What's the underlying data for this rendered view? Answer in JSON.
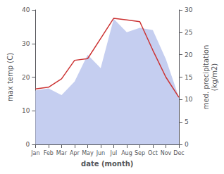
{
  "chart_data": {
    "type": "line",
    "categories": [
      "Jan",
      "Feb",
      "Mar",
      "Apr",
      "May",
      "Jun",
      "Jul",
      "Aug",
      "Sep",
      "Oct",
      "Nov",
      "Dec"
    ],
    "xlabel": "date (month)",
    "ylabel": "max temp (C)",
    "y2label": "med. precipitation\n(kg/m2)",
    "ylim": [
      0,
      40
    ],
    "yticks": [
      0,
      10,
      20,
      30,
      40
    ],
    "y2lim": [
      0,
      30
    ],
    "y2ticks": [
      0,
      5,
      10,
      15,
      20,
      25,
      30
    ],
    "grid": false,
    "series": [
      {
        "type": "area",
        "color": "#c5cef0",
        "axis": "y2",
        "values": [
          12.0,
          12.5,
          11.0,
          14.0,
          20.0,
          17.0,
          28.0,
          25.0,
          26.0,
          25.5,
          19.0,
          10.5
        ]
      },
      {
        "type": "line",
        "color": "#cc3333",
        "values": [
          16.5,
          17.0,
          19.5,
          25.0,
          25.5,
          31.5,
          37.5,
          37.0,
          36.5,
          28.0,
          20.0,
          14.0
        ]
      }
    ]
  }
}
